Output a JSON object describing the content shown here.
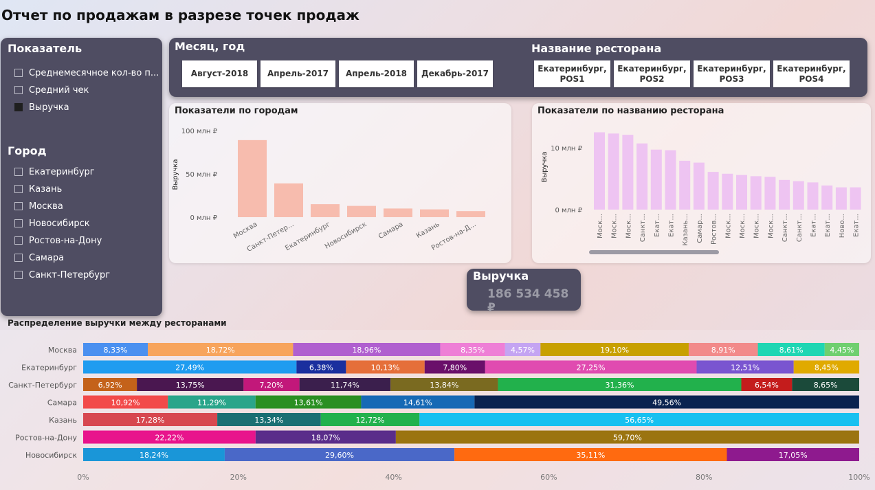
{
  "page": {
    "title": "Отчет по продажам в разрезе точек продаж"
  },
  "slicers": {
    "metric": {
      "title": "Показатель",
      "items": [
        {
          "label": "Среднемесячное кол-во п...",
          "checked": false
        },
        {
          "label": "Средний чек",
          "checked": false
        },
        {
          "label": "Выручка",
          "checked": true
        }
      ]
    },
    "city": {
      "title": "Город",
      "items": [
        {
          "label": "Екатеринбург",
          "checked": false
        },
        {
          "label": "Казань",
          "checked": false
        },
        {
          "label": "Москва",
          "checked": false
        },
        {
          "label": "Новосибирск",
          "checked": false
        },
        {
          "label": "Ростов-на-Дону",
          "checked": false
        },
        {
          "label": "Самара",
          "checked": false
        },
        {
          "label": "Санкт-Петербург",
          "checked": false
        }
      ]
    }
  },
  "filters": {
    "month": {
      "title": "Месяц, год",
      "chips": [
        "Август-2018",
        "Апрель-2017",
        "Апрель-2018",
        "Декабрь-2017"
      ]
    },
    "restaurant": {
      "title": "Название ресторана",
      "chips": [
        "Екатеринбург, POS1",
        "Екатеринбург, POS2",
        "Екатеринбург, POS3",
        "Екатеринбург, POS4"
      ]
    }
  },
  "kpi": {
    "label": "Выручка",
    "value": "186 534 458 ₽"
  },
  "chart_data": [
    {
      "id": "city-chart",
      "type": "bar",
      "title": "Показатели по городам",
      "ylabel": "Выручка",
      "ylim": [
        0,
        100
      ],
      "yticks": [
        0,
        50,
        100
      ],
      "ytick_labels": [
        "0 млн ₽",
        "50 млн ₽",
        "100 млн ₽"
      ],
      "categories": [
        "Москва",
        "Санкт-Петер...",
        "Екатеринбург",
        "Новосибирск",
        "Самара",
        "Казань",
        "Ростов-на-Д..."
      ],
      "values": [
        89,
        39,
        15,
        13,
        10,
        9,
        7
      ],
      "color": "#f7bcae",
      "grid": false
    },
    {
      "id": "restaurant-chart",
      "type": "bar",
      "title": "Показатели по названию ресторана",
      "ylabel": "Выручка",
      "ylim": [
        0,
        13
      ],
      "yticks": [
        0,
        10
      ],
      "ytick_labels": [
        "0 млн ₽",
        "10 млн ₽"
      ],
      "categories": [
        "Моск...",
        "Моск...",
        "Моск...",
        "Санкт...",
        "Екат...",
        "Екат...",
        "Казань...",
        "Самар...",
        "Ростов...",
        "Моск...",
        "Моск...",
        "Моск...",
        "Моск...",
        "Санкт...",
        "Санкт...",
        "Екат...",
        "Екат...",
        "Ново...",
        "Екат..."
      ],
      "values": [
        12.5,
        12.3,
        12.1,
        10.7,
        9.7,
        9.6,
        7.9,
        7.6,
        6.1,
        5.8,
        5.6,
        5.4,
        5.3,
        4.8,
        4.6,
        4.4,
        3.9,
        3.6,
        3.6
      ],
      "color": "#eec4f2",
      "grid": false,
      "scrollbar": true
    },
    {
      "id": "stacked-chart",
      "type": "bar",
      "orientation": "horizontal",
      "stacked": "percent",
      "title": "Распределение выручки между ресторанами",
      "xlim": [
        0,
        100
      ],
      "xticks": [
        0,
        20,
        40,
        60,
        80,
        100
      ],
      "xtick_labels": [
        "0%",
        "20%",
        "40%",
        "60%",
        "80%",
        "100%"
      ],
      "categories": [
        "Москва",
        "Екатеринбург",
        "Санкт-Петербург",
        "Самара",
        "Казань",
        "Ростов-на-Дону",
        "Новосибирск"
      ],
      "rows": [
        {
          "category": "Москва",
          "segments": [
            {
              "value": 8.33,
              "label": "8,33%",
              "color": "#4a90f0"
            },
            {
              "value": 18.72,
              "label": "18,72%",
              "color": "#f7a45c"
            },
            {
              "value": 18.96,
              "label": "18,96%",
              "color": "#b05fcf"
            },
            {
              "value": 8.35,
              "label": "8,35%",
              "color": "#ee7fd6"
            },
            {
              "value": 4.57,
              "label": "4,57%",
              "color": "#c4a4f2"
            },
            {
              "value": 19.1,
              "label": "19,10%",
              "color": "#c8a000"
            },
            {
              "value": 8.91,
              "label": "8,91%",
              "color": "#f28a8a"
            },
            {
              "value": 8.61,
              "label": "8,61%",
              "color": "#1fd6b3"
            },
            {
              "value": 4.45,
              "label": "4,45%",
              "color": "#6fcf6f"
            }
          ]
        },
        {
          "category": "Екатеринбург",
          "segments": [
            {
              "value": 27.49,
              "label": "27,49%",
              "color": "#1f9cf0"
            },
            {
              "value": 6.38,
              "label": "6,38%",
              "color": "#1a2f9e"
            },
            {
              "value": 10.13,
              "label": "10,13%",
              "color": "#e56f3a"
            },
            {
              "value": 7.8,
              "label": "7,80%",
              "color": "#6a0f6a"
            },
            {
              "value": 27.25,
              "label": "27,25%",
              "color": "#e04bb0"
            },
            {
              "value": 12.51,
              "label": "12,51%",
              "color": "#7a55d0"
            },
            {
              "value": 8.45,
              "label": "8,45%",
              "color": "#e0aa00"
            }
          ]
        },
        {
          "category": "Санкт-Петербург",
          "segments": [
            {
              "value": 6.92,
              "label": "6,92%",
              "color": "#c4621a"
            },
            {
              "value": 13.75,
              "label": "13,75%",
              "color": "#4a1750"
            },
            {
              "value": 7.2,
              "label": "7,20%",
              "color": "#c2187a"
            },
            {
              "value": 11.74,
              "label": "11,74%",
              "color": "#3b1f4d"
            },
            {
              "value": 13.84,
              "label": "13,84%",
              "color": "#7a6a20"
            },
            {
              "value": 31.36,
              "label": "31,36%",
              "color": "#22b14c"
            },
            {
              "value": 6.54,
              "label": "6,54%",
              "color": "#c41c1c"
            },
            {
              "value": 8.65,
              "label": "8,65%",
              "color": "#1b4a3a"
            }
          ]
        },
        {
          "category": "Самара",
          "segments": [
            {
              "value": 10.92,
              "label": "10,92%",
              "color": "#f24a4a"
            },
            {
              "value": 11.29,
              "label": "11,29%",
              "color": "#2aa58a"
            },
            {
              "value": 13.61,
              "label": "13,61%",
              "color": "#2a8f22"
            },
            {
              "value": 14.61,
              "label": "14,61%",
              "color": "#1769b5"
            },
            {
              "value": 49.56,
              "label": "49,56%",
              "color": "#0a2350"
            }
          ]
        },
        {
          "category": "Казань",
          "segments": [
            {
              "value": 17.28,
              "label": "17,28%",
              "color": "#d74850"
            },
            {
              "value": 13.34,
              "label": "13,34%",
              "color": "#1a6f73"
            },
            {
              "value": 12.72,
              "label": "12,72%",
              "color": "#22b14c"
            },
            {
              "value": 56.65,
              "label": "56,65%",
              "color": "#17c0f0"
            }
          ]
        },
        {
          "category": "Ростов-на-Дону",
          "segments": [
            {
              "value": 22.22,
              "label": "22,22%",
              "color": "#e8148c"
            },
            {
              "value": 18.07,
              "label": "18,07%",
              "color": "#5a2d8a"
            },
            {
              "value": 59.7,
              "label": "59,70%",
              "color": "#9b7410"
            }
          ]
        },
        {
          "category": "Новосибирск",
          "segments": [
            {
              "value": 18.24,
              "label": "18,24%",
              "color": "#1a96d8"
            },
            {
              "value": 29.6,
              "label": "29,60%",
              "color": "#4a68c8"
            },
            {
              "value": 35.11,
              "label": "35,11%",
              "color": "#ff6a10"
            },
            {
              "value": 17.05,
              "label": "17,05%",
              "color": "#8e1a8e"
            }
          ]
        }
      ]
    }
  ]
}
